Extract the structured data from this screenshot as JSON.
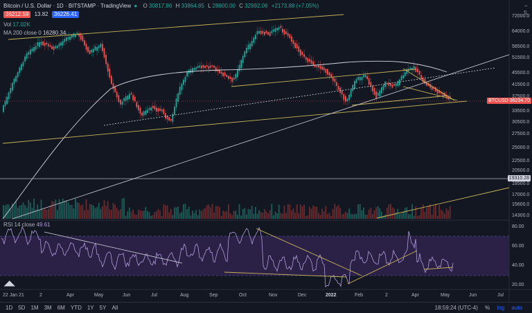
{
  "header": {
    "symbol_title": "Bitcoin / U.S. Dollar",
    "interval": "1D",
    "exchange": "BITSTAMP",
    "brand": "TradingView",
    "ohlc": {
      "o_label": "O",
      "o": "30817.86",
      "h_label": "H",
      "h": "33864.85",
      "l_label": "L",
      "l": "28600.00",
      "c_label": "C",
      "c": "32992.06",
      "change": "+2173.88 (+7.05%)"
    },
    "bid": "36212.59",
    "spread": "13.82",
    "ask": "36226.41",
    "volume_label": "Vol",
    "volume_value": "17.02K",
    "ma_label": "MA 200 close 0",
    "ma_value": "16280.34"
  },
  "rsi": {
    "label": "RSI 14 close",
    "value": "49.61",
    "axis": [
      "80.00",
      "60.00",
      "40.00",
      "20.00"
    ]
  },
  "price_axis": {
    "ticks": [
      "72000.0",
      "64000.0",
      "56500.0",
      "51500.0",
      "45500.0",
      "41500.0",
      "37500.0",
      "33500.0",
      "30500.0",
      "27500.0",
      "25000.0",
      "22500.0",
      "20500.0",
      "18500.0",
      "17000.0",
      "15600.0",
      "14300.0"
    ],
    "current_tag": "BTCUSD",
    "current_price": "36234.70",
    "line_price": "19310.28"
  },
  "time_axis": {
    "first": "22 Jan 21",
    "labels": [
      "2",
      "Apr",
      "May",
      "Jun",
      "Jul",
      "Aug",
      "Sep",
      "Oct",
      "Nov",
      "Dec",
      "2022",
      "Feb",
      "2",
      "Apr",
      "May",
      "Jun",
      "Jul"
    ]
  },
  "bottom": {
    "timeframes": [
      "1D",
      "5D",
      "1M",
      "3M",
      "6M",
      "YTD",
      "1Y",
      "5Y",
      "All"
    ],
    "clock": "18:59:24 (UTC-4)",
    "pct": "%",
    "log": "log",
    "auto": "auto"
  },
  "colors": {
    "background": "#131722",
    "up": "#26a69a",
    "down": "#ef5350",
    "trendline": "#c9b458",
    "ma": "#d1d4dc",
    "rsi_line": "#b39ddb",
    "rsi_band": "#3b2a6b"
  },
  "icons": [
    "trendline-draw-icon",
    "eye-icon",
    "settings-icon",
    "close-icon",
    "chart-settings-icon"
  ]
}
